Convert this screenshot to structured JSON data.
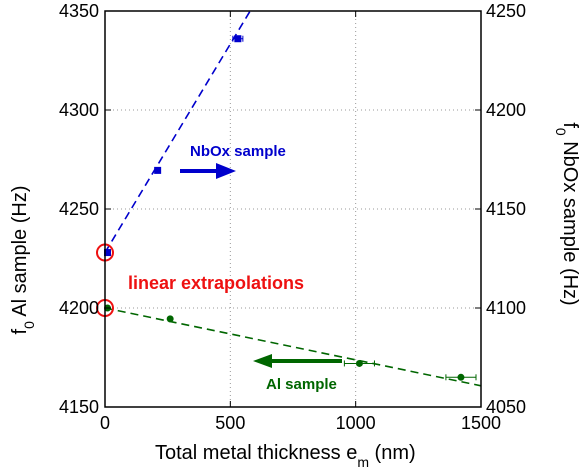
{
  "chart_data": {
    "type": "scatter",
    "xlabel": "Total metal thickness e",
    "xlabel_sub": "m",
    "xlabel_unit": " (nm)",
    "ylabel_left": "f",
    "ylabel_left_sub": "0",
    "ylabel_left_rest": " Al sample (Hz)",
    "ylabel_right": "f",
    "ylabel_right_sub": "0",
    "ylabel_right_rest": " NbOx sample (Hz)",
    "xlim": [
      0,
      1500
    ],
    "ylim_left": [
      4150,
      4350
    ],
    "ylim_right": [
      4050,
      4250
    ],
    "xticks": [
      0,
      500,
      1000,
      1500
    ],
    "yticks_left": [
      4150,
      4200,
      4250,
      4300,
      4350
    ],
    "yticks_right": [
      4050,
      4100,
      4150,
      4200,
      4250
    ],
    "grid": "dotted",
    "series": [
      {
        "name": "NbOx sample",
        "axis": "right",
        "color": "#0000cc",
        "marker": "square",
        "points": [
          {
            "x": 10,
            "y": 4128.0
          },
          {
            "x": 210,
            "y": 4169.5
          },
          {
            "x": 530,
            "y": 4236.0,
            "xerr": 20
          }
        ],
        "fit": {
          "x0": 0,
          "y0": 4128.0,
          "slope": 0.2107
        }
      },
      {
        "name": "Al sample",
        "axis": "left",
        "color": "#006600",
        "marker": "circle",
        "points": [
          {
            "x": 10,
            "y": 4200.0
          },
          {
            "x": 260,
            "y": 4194.5
          },
          {
            "x": 1015,
            "y": 4172.0,
            "xerr": 60
          },
          {
            "x": 1420,
            "y": 4165.0,
            "xerr": 60
          }
        ],
        "fit": {
          "x0": 0,
          "y0": 4200.0,
          "slope": -0.0262
        }
      }
    ],
    "annotations": [
      {
        "text": "NbOx sample",
        "color": "#0000cc"
      },
      {
        "text": "Al sample",
        "color": "#006600"
      },
      {
        "text": "linear extrapolations",
        "color": "#ee1111"
      }
    ]
  }
}
